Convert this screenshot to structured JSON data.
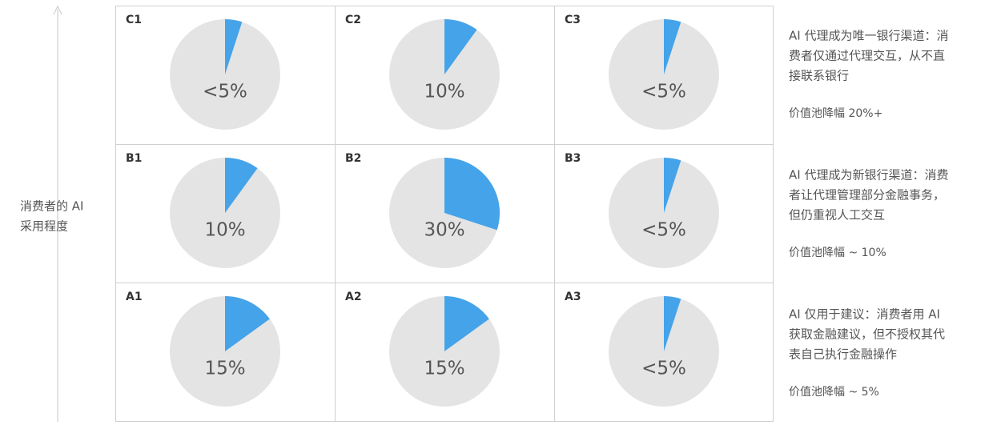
{
  "chart_data": [
    {
      "type": "pie",
      "title": "C1",
      "values": [
        5
      ],
      "value_labels": [
        "<5%"
      ],
      "color": "#45a3e9"
    },
    {
      "type": "pie",
      "title": "C2",
      "values": [
        10
      ],
      "value_labels": [
        "10%"
      ],
      "color": "#45a3e9"
    },
    {
      "type": "pie",
      "title": "C3",
      "values": [
        5
      ],
      "value_labels": [
        "<5%"
      ],
      "color": "#45a3e9"
    },
    {
      "type": "pie",
      "title": "B1",
      "values": [
        10
      ],
      "value_labels": [
        "10%"
      ],
      "color": "#45a3e9"
    },
    {
      "type": "pie",
      "title": "B2",
      "values": [
        30
      ],
      "value_labels": [
        "30%"
      ],
      "color": "#45a3e9"
    },
    {
      "type": "pie",
      "title": "B3",
      "values": [
        5
      ],
      "value_labels": [
        "<5%"
      ],
      "color": "#45a3e9"
    },
    {
      "type": "pie",
      "title": "A1",
      "values": [
        15
      ],
      "value_labels": [
        "15%"
      ],
      "color": "#45a3e9"
    },
    {
      "type": "pie",
      "title": "A2",
      "values": [
        15
      ],
      "value_labels": [
        "15%"
      ],
      "color": "#45a3e9"
    },
    {
      "type": "pie",
      "title": "A3",
      "values": [
        5
      ],
      "value_labels": [
        "<5%"
      ],
      "color": "#45a3e9"
    }
  ],
  "y_axis_label": [
    "消费者的 AI",
    "采用程度"
  ],
  "scenarios": [
    {
      "description": [
        "AI 代理成为唯一银行渠道：消",
        "费者仅通过代理交互，从不直",
        "接联系银行"
      ],
      "impact": "价值池降幅 20%+"
    },
    {
      "description": [
        "AI 代理成为新银行渠道：消费",
        "者让代理管理部分金融事务，",
        "但仍重视人工交互"
      ],
      "impact": "价值池降幅 ~ 10%"
    },
    {
      "description": [
        "AI 仅用于建议：消费者用 AI",
        "获取金融建议，但不授权其代",
        "表自己执行金融操作"
      ],
      "impact": "价值池降幅 ~ 5%"
    }
  ]
}
